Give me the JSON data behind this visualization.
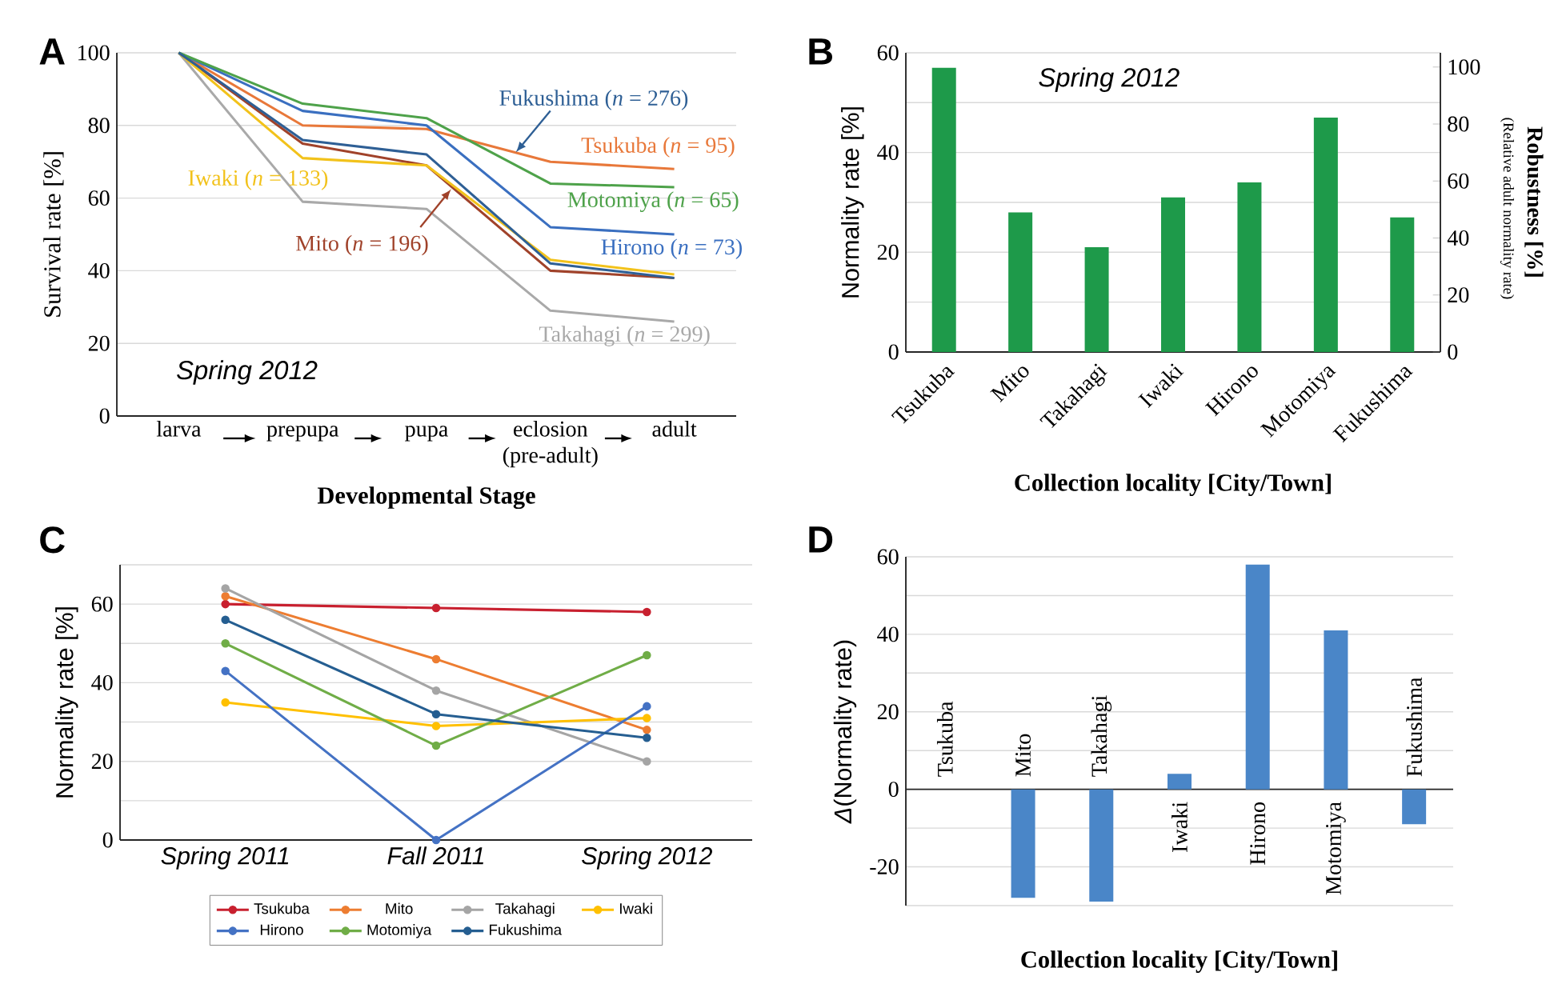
{
  "chart_data": [
    {
      "type": "line",
      "title": "A",
      "xlabel": "Developmental Stage",
      "ylabel": "Survival rate [%]",
      "categories": [
        "larva",
        "prepupa",
        "pupa",
        "eclosion (pre-adult)",
        "adult"
      ],
      "ylim": [
        0,
        100
      ],
      "yticks": [
        0,
        20,
        40,
        60,
        80,
        100
      ],
      "grid": "y",
      "annotations": [
        "Spring 2012"
      ],
      "series": [
        {
          "name": "Tsukuba (*n* = 95)",
          "color": "#e8783a",
          "values": [
            100,
            80,
            79,
            70,
            68
          ]
        },
        {
          "name": "Mito (*n* = 196)",
          "color": "#a0422a",
          "values": [
            100,
            75,
            69,
            40,
            38
          ]
        },
        {
          "name": "Takahagi (*n* = 299)",
          "color": "#a9a9a9",
          "values": [
            100,
            59,
            57,
            29,
            26
          ]
        },
        {
          "name": "Iwaki (*n* = 133)",
          "color": "#f2c21b",
          "values": [
            100,
            71,
            69,
            43,
            39
          ]
        },
        {
          "name": "Hirono (*n* = 73)",
          "color": "#3a6fc0",
          "values": [
            100,
            84,
            80,
            52,
            50
          ]
        },
        {
          "name": "Motomiya (*n* = 65)",
          "color": "#4ea24a",
          "values": [
            100,
            86,
            82,
            64,
            63
          ]
        },
        {
          "name": "Fukushima (*n* = 276)",
          "color": "#2e5f95",
          "values": [
            100,
            76,
            72,
            42,
            38
          ]
        }
      ]
    },
    {
      "type": "bar",
      "title": "B",
      "xlabel": "Collection locality [City/Town]",
      "ylabel": "Normality rate [%]",
      "y2label": "Robustness [%]",
      "categories": [
        "Tsukuba",
        "Mito",
        "Takahagi",
        "Iwaki",
        "Hirono",
        "Motomiya",
        "Fukushima"
      ],
      "values": [
        57,
        28,
        21,
        31,
        34,
        47,
        27
      ],
      "color": "#1e9a4a",
      "ylim": [
        0,
        60
      ],
      "yticks": [
        0,
        {
          "value": 10,
          "label": null
        },
        20,
        {
          "value": 30,
          "label": null
        },
        40,
        {
          "value": 50,
          "label": null
        },
        60
      ],
      "y2lim": [
        0,
        105
      ],
      "y2ticks": [
        0,
        20,
        40,
        60,
        80,
        100
      ],
      "grid": "y",
      "annotations": [
        "Spring 2012",
        "(Relative adult normality rate)"
      ]
    },
    {
      "type": "line",
      "title": "C",
      "ylabel": "Normality rate [%]",
      "categories": [
        "Spring 2011",
        "Fall 2011",
        "Spring 2012"
      ],
      "ylim": [
        0,
        70
      ],
      "yticks": [
        0,
        {
          "value": 10,
          "label": null
        },
        20,
        {
          "value": 30,
          "label": null
        },
        40,
        {
          "value": 50,
          "label": null
        },
        60,
        {
          "value": 70,
          "label": null
        }
      ],
      "grid": "y",
      "legend": "bottom",
      "marker": "circle",
      "series": [
        {
          "name": "Tsukuba",
          "color": "#c8202f",
          "values": [
            60,
            59,
            58
          ]
        },
        {
          "name": "Mito",
          "color": "#ed7d31",
          "values": [
            62,
            46,
            28
          ]
        },
        {
          "name": "Takahagi",
          "color": "#a5a5a5",
          "values": [
            64,
            38,
            20
          ]
        },
        {
          "name": "Iwaki",
          "color": "#ffc000",
          "values": [
            35,
            29,
            31
          ]
        },
        {
          "name": "Hirono",
          "color": "#4472c4",
          "values": [
            43,
            0,
            34
          ]
        },
        {
          "name": "Motomiya",
          "color": "#70ad47",
          "values": [
            50,
            24,
            47
          ]
        },
        {
          "name": "Fukushima",
          "color": "#255e91",
          "values": [
            56,
            32,
            26
          ]
        }
      ]
    },
    {
      "type": "bar",
      "title": "D",
      "xlabel": "Collection locality [City/Town]",
      "ylabel": "*Δ*(Normality rate)",
      "categories": [
        "Tsukuba",
        "Mito",
        "Takahagi",
        "Iwaki",
        "Hirono",
        "Motomiya",
        "Fukushima"
      ],
      "values": [
        0,
        -28,
        -29,
        4,
        58,
        41,
        -9
      ],
      "color": "#4a86c8",
      "ylim": [
        -30,
        60
      ],
      "yticks": [
        {
          "value": -30,
          "label": null
        },
        -20,
        {
          "value": -10,
          "label": null
        },
        0,
        {
          "value": 10,
          "label": null
        },
        20,
        {
          "value": 30,
          "label": null
        },
        40,
        {
          "value": 50,
          "label": null
        },
        60
      ],
      "grid": "y"
    }
  ]
}
